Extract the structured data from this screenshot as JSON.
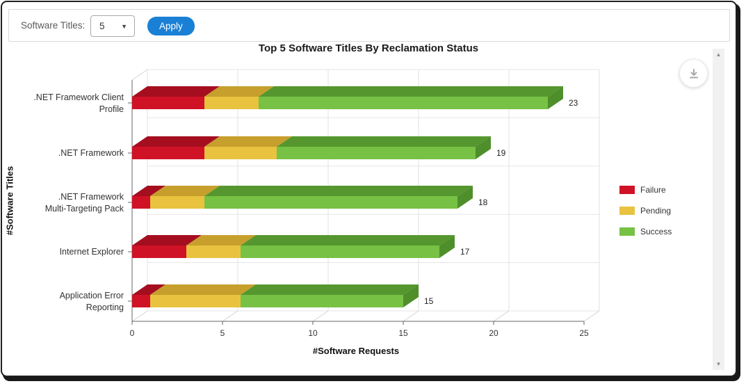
{
  "toolbar": {
    "label": "Software Titles:",
    "select_value": "5",
    "apply_label": "Apply",
    "accent_color": "#1a80d6"
  },
  "chart_data": {
    "type": "bar",
    "variant": "horizontal-stacked-3d",
    "title": "Top 5 Software Titles By Reclamation Status",
    "xlabel": "#Software Requests",
    "ylabel": "#Software Titles",
    "xlim": [
      0,
      25
    ],
    "xticks": [
      0,
      5,
      10,
      15,
      20,
      25
    ],
    "grid": true,
    "legend_position": "right",
    "categories": [
      ".NET Framework Client Profile",
      ".NET Framework",
      ".NET Framework Multi-Targeting Pack",
      "Internet Explorer",
      "Application Error Reporting"
    ],
    "category_label_lines": [
      [
        ".NET Framework Client",
        "Profile"
      ],
      [
        ".NET Framework"
      ],
      [
        ".NET Framework",
        "Multi-Targeting Pack"
      ],
      [
        "Internet Explorer"
      ],
      [
        "Application Error",
        "Reporting"
      ]
    ],
    "series": [
      {
        "name": "Failure",
        "color": "#d01226",
        "top_color": "#a50e1f",
        "side_color": "#a50e1f",
        "values": [
          4,
          4,
          1,
          3,
          1
        ]
      },
      {
        "name": "Pending",
        "color": "#e9c23f",
        "top_color": "#c79f2c",
        "side_color": "#c79f2c",
        "values": [
          3,
          4,
          3,
          3,
          5
        ]
      },
      {
        "name": "Success",
        "color": "#77c144",
        "top_color": "#55972e",
        "side_color": "#4f8f2b",
        "values": [
          16,
          11,
          14,
          11,
          9
        ]
      }
    ],
    "totals": [
      23,
      19,
      18,
      17,
      15
    ]
  },
  "icons": {
    "download": "download-icon",
    "scroll_up_glyph": "▲",
    "scroll_down_glyph": "▼",
    "select_caret_glyph": "▼"
  }
}
